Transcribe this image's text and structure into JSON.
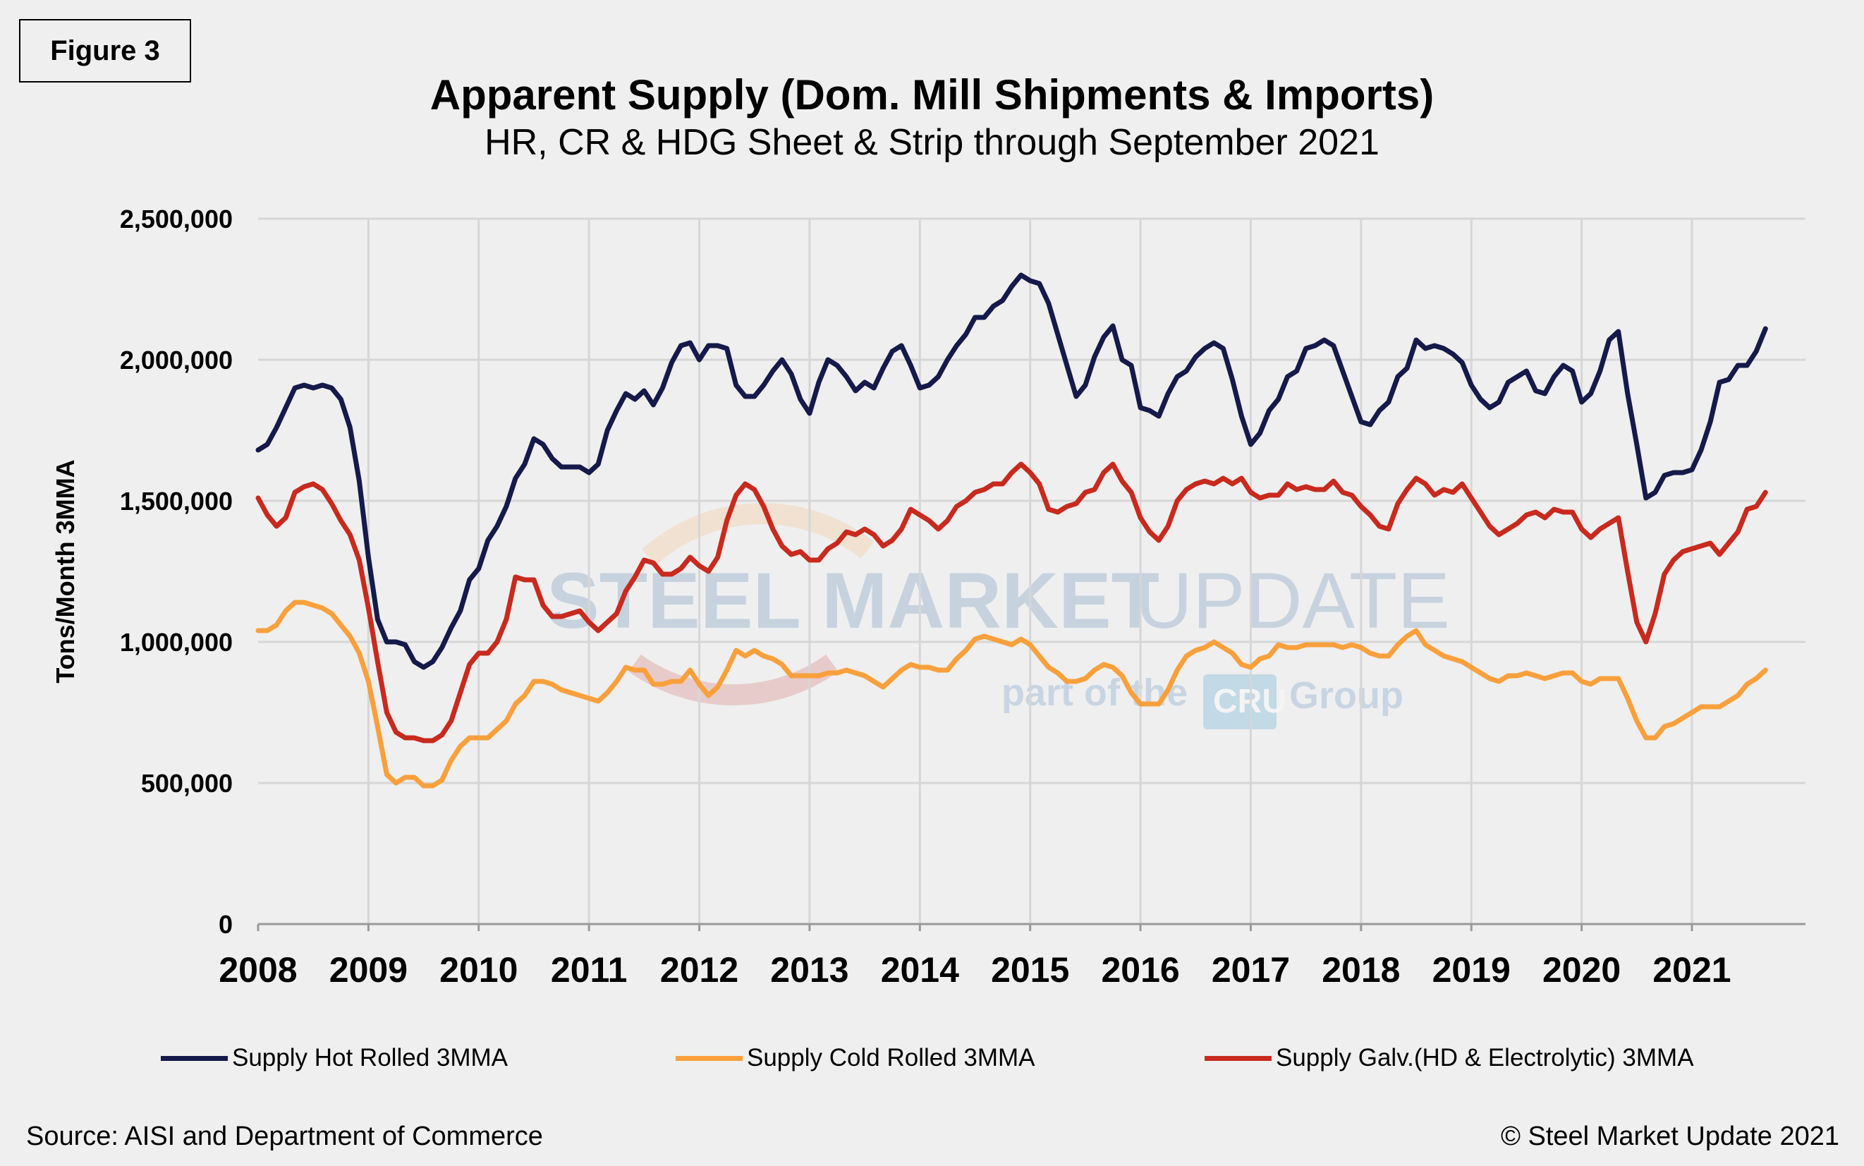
{
  "figure_label": "Figure 3",
  "footer": {
    "source": "Source: AISI and Department of Commerce",
    "copyright": "© Steel Market Update 2021"
  },
  "watermark": {
    "brand_bold": "STEEL MARKET",
    "brand_light": "UPDATE",
    "part_of": "part of the",
    "cru": "CRU",
    "group": "Group"
  },
  "chart_data": {
    "type": "line",
    "title": "Apparent Supply (Dom. Mill Shipments & Imports)",
    "subtitle": "HR, CR & HDG Sheet & Strip through September 2021",
    "ylabel": "Tons/Month 3MMA",
    "xlabel": "",
    "ylim": [
      0,
      2500000
    ],
    "y_ticks": [
      "0",
      "500,000",
      "1,000,000",
      "1,500,000",
      "2,000,000",
      "2,500,000"
    ],
    "x_ticks": [
      "2008",
      "2009",
      "2010",
      "2011",
      "2012",
      "2013",
      "2014",
      "2015",
      "2016",
      "2017",
      "2018",
      "2019",
      "2020",
      "2021"
    ],
    "x_start": "2008-01",
    "x_end": "2021-09",
    "frequency": "monthly",
    "grid": true,
    "legend_position": "bottom",
    "series": [
      {
        "name": "Supply Hot Rolled 3MMA",
        "color": "#141a4a",
        "values": [
          1680000,
          1700000,
          1760000,
          1830000,
          1900000,
          1910000,
          1900000,
          1910000,
          1900000,
          1860000,
          1760000,
          1570000,
          1300000,
          1080000,
          1000000,
          1000000,
          990000,
          930000,
          910000,
          930000,
          980000,
          1050000,
          1110000,
          1220000,
          1260000,
          1360000,
          1410000,
          1480000,
          1580000,
          1630000,
          1720000,
          1700000,
          1650000,
          1620000,
          1620000,
          1620000,
          1600000,
          1630000,
          1750000,
          1820000,
          1880000,
          1860000,
          1890000,
          1840000,
          1900000,
          1990000,
          2050000,
          2060000,
          2000000,
          2050000,
          2050000,
          2040000,
          1910000,
          1870000,
          1870000,
          1910000,
          1960000,
          2000000,
          1950000,
          1860000,
          1810000,
          1920000,
          2000000,
          1980000,
          1940000,
          1890000,
          1920000,
          1900000,
          1970000,
          2030000,
          2050000,
          1980000,
          1900000,
          1910000,
          1940000,
          2000000,
          2050000,
          2090000,
          2150000,
          2150000,
          2190000,
          2210000,
          2260000,
          2300000,
          2280000,
          2270000,
          2200000,
          2090000,
          1980000,
          1870000,
          1910000,
          2010000,
          2080000,
          2120000,
          2000000,
          1980000,
          1830000,
          1820000,
          1800000,
          1880000,
          1940000,
          1960000,
          2010000,
          2040000,
          2060000,
          2040000,
          1930000,
          1800000,
          1700000,
          1740000,
          1820000,
          1860000,
          1940000,
          1960000,
          2040000,
          2050000,
          2070000,
          2050000,
          1960000,
          1870000,
          1780000,
          1770000,
          1820000,
          1850000,
          1940000,
          1970000,
          2070000,
          2040000,
          2050000,
          2040000,
          2020000,
          1990000,
          1910000,
          1860000,
          1830000,
          1850000,
          1920000,
          1940000,
          1960000,
          1890000,
          1880000,
          1940000,
          1980000,
          1960000,
          1850000,
          1880000,
          1960000,
          2070000,
          2100000,
          1880000,
          1700000,
          1510000,
          1530000,
          1590000,
          1600000,
          1600000,
          1610000,
          1680000,
          1780000,
          1920000,
          1930000,
          1980000,
          1980000,
          2030000,
          2110000
        ]
      },
      {
        "name": "Supply Cold Rolled 3MMA",
        "color": "#f9a03c",
        "values": [
          1040000,
          1040000,
          1060000,
          1110000,
          1140000,
          1140000,
          1130000,
          1120000,
          1100000,
          1060000,
          1020000,
          960000,
          860000,
          700000,
          530000,
          500000,
          520000,
          520000,
          490000,
          490000,
          510000,
          580000,
          630000,
          660000,
          660000,
          660000,
          690000,
          720000,
          780000,
          810000,
          860000,
          860000,
          850000,
          830000,
          820000,
          810000,
          800000,
          790000,
          820000,
          860000,
          910000,
          900000,
          900000,
          850000,
          850000,
          860000,
          860000,
          900000,
          850000,
          810000,
          840000,
          900000,
          970000,
          950000,
          970000,
          950000,
          940000,
          920000,
          880000,
          880000,
          880000,
          880000,
          890000,
          890000,
          900000,
          890000,
          880000,
          860000,
          840000,
          870000,
          900000,
          920000,
          910000,
          910000,
          900000,
          900000,
          940000,
          970000,
          1010000,
          1020000,
          1010000,
          1000000,
          990000,
          1010000,
          990000,
          950000,
          910000,
          890000,
          860000,
          860000,
          870000,
          900000,
          920000,
          910000,
          880000,
          820000,
          780000,
          780000,
          780000,
          830000,
          900000,
          950000,
          970000,
          980000,
          1000000,
          980000,
          960000,
          920000,
          910000,
          940000,
          950000,
          990000,
          980000,
          980000,
          990000,
          990000,
          990000,
          990000,
          980000,
          990000,
          980000,
          960000,
          950000,
          950000,
          990000,
          1020000,
          1040000,
          990000,
          970000,
          950000,
          940000,
          930000,
          910000,
          890000,
          870000,
          860000,
          880000,
          880000,
          890000,
          880000,
          870000,
          880000,
          890000,
          890000,
          860000,
          850000,
          870000,
          870000,
          870000,
          800000,
          720000,
          660000,
          660000,
          700000,
          710000,
          730000,
          750000,
          770000,
          770000,
          770000,
          790000,
          810000,
          850000,
          870000,
          900000
        ]
      },
      {
        "name": "Supply Galv.(HD & Electrolytic) 3MMA",
        "color": "#c82a1e",
        "values": [
          1510000,
          1450000,
          1410000,
          1440000,
          1530000,
          1550000,
          1560000,
          1540000,
          1490000,
          1430000,
          1380000,
          1290000,
          1120000,
          930000,
          750000,
          680000,
          660000,
          660000,
          650000,
          650000,
          670000,
          720000,
          820000,
          920000,
          960000,
          960000,
          1000000,
          1080000,
          1230000,
          1220000,
          1220000,
          1130000,
          1090000,
          1090000,
          1100000,
          1110000,
          1070000,
          1040000,
          1070000,
          1100000,
          1180000,
          1230000,
          1290000,
          1280000,
          1240000,
          1240000,
          1260000,
          1300000,
          1270000,
          1250000,
          1300000,
          1430000,
          1520000,
          1560000,
          1540000,
          1480000,
          1400000,
          1340000,
          1310000,
          1320000,
          1290000,
          1290000,
          1330000,
          1350000,
          1390000,
          1380000,
          1400000,
          1380000,
          1340000,
          1360000,
          1400000,
          1470000,
          1450000,
          1430000,
          1400000,
          1430000,
          1480000,
          1500000,
          1530000,
          1540000,
          1560000,
          1560000,
          1600000,
          1630000,
          1600000,
          1560000,
          1470000,
          1460000,
          1480000,
          1490000,
          1530000,
          1540000,
          1600000,
          1630000,
          1570000,
          1530000,
          1440000,
          1390000,
          1360000,
          1410000,
          1500000,
          1540000,
          1560000,
          1570000,
          1560000,
          1580000,
          1560000,
          1580000,
          1530000,
          1510000,
          1520000,
          1520000,
          1560000,
          1540000,
          1550000,
          1540000,
          1540000,
          1570000,
          1530000,
          1520000,
          1480000,
          1450000,
          1410000,
          1400000,
          1490000,
          1540000,
          1580000,
          1560000,
          1520000,
          1540000,
          1530000,
          1560000,
          1510000,
          1460000,
          1410000,
          1380000,
          1400000,
          1420000,
          1450000,
          1460000,
          1440000,
          1470000,
          1460000,
          1460000,
          1400000,
          1370000,
          1400000,
          1420000,
          1440000,
          1250000,
          1070000,
          1000000,
          1100000,
          1240000,
          1290000,
          1320000,
          1330000,
          1340000,
          1350000,
          1310000,
          1350000,
          1390000,
          1470000,
          1480000,
          1530000
        ]
      }
    ]
  }
}
